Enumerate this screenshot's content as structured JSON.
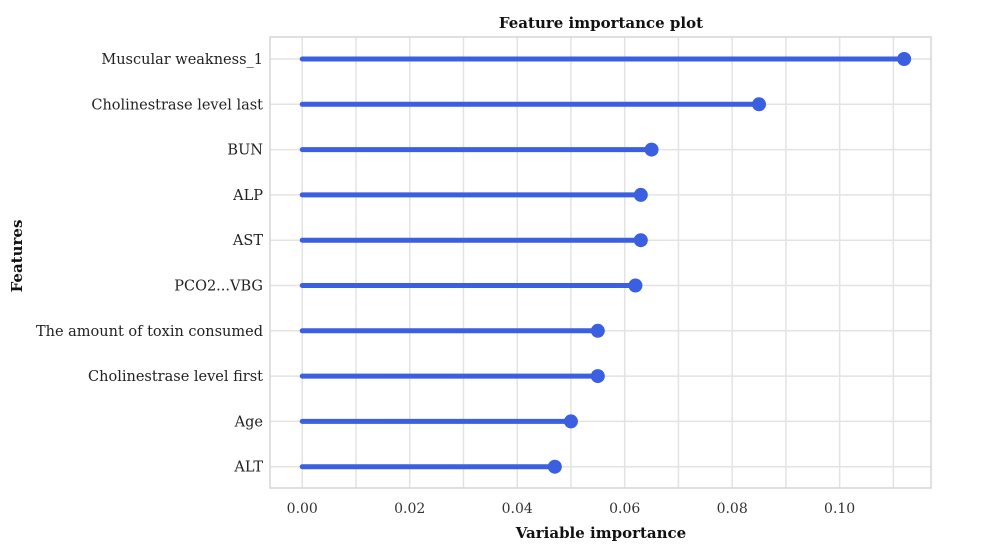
{
  "chart_data": {
    "type": "lollipop",
    "title": "Feature importance plot",
    "xlabel": "Variable importance",
    "ylabel": "Features",
    "xlim": [
      -0.006,
      0.117
    ],
    "xticks": [
      0.0,
      0.02,
      0.04,
      0.06,
      0.08,
      0.1
    ],
    "xtick_labels": [
      "0.00",
      "0.02",
      "0.04",
      "0.06",
      "0.08",
      "0.10"
    ],
    "grid": true,
    "color": "#3a5fe0",
    "categories": [
      "Muscular weakness_1",
      "Cholinestrase level last",
      "BUN",
      "ALP",
      "AST",
      "PCO2...VBG",
      "The amount of toxin consumed",
      "Cholinestrase level first",
      "Age",
      "ALT"
    ],
    "values": [
      0.112,
      0.085,
      0.065,
      0.063,
      0.063,
      0.062,
      0.055,
      0.055,
      0.05,
      0.047
    ]
  }
}
